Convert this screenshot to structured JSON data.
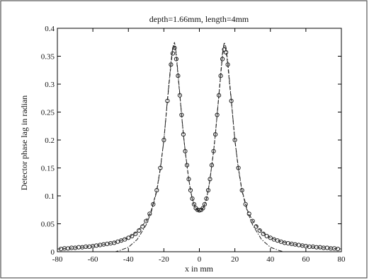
{
  "chart_data": {
    "type": "line",
    "title": "depth=1.66mm, length=4mm",
    "xlabel": "x in mm",
    "ylabel": "Detector phase lag in radian",
    "xlim": [
      -80,
      80
    ],
    "ylim": [
      0,
      0.4
    ],
    "xticks": [
      -80,
      -60,
      -40,
      -20,
      0,
      20,
      40,
      60,
      80
    ],
    "yticks": [
      0,
      0.05,
      0.1,
      0.15,
      0.2,
      0.25,
      0.3,
      0.35,
      0.4
    ],
    "xtick_labels": [
      "-80",
      "-60",
      "-40",
      "-20",
      "0",
      "20",
      "40",
      "60",
      "80"
    ],
    "ytick_labels": [
      "0",
      "0.05",
      "0.1",
      "0.15",
      "0.2",
      "0.25",
      "0.3",
      "0.35",
      "0.4"
    ],
    "grid": false,
    "legend": "none",
    "colors": {
      "series": "#222222",
      "axes": "#000000",
      "frame": "#555555"
    },
    "series": [
      {
        "style": "dashed",
        "x": [
          -80,
          -70,
          -60,
          -50,
          -45,
          -40,
          -35,
          -30,
          -27,
          -24,
          -22,
          -20,
          -18,
          -16,
          -15,
          -14,
          -13,
          -12,
          -11,
          -10,
          -9,
          -8,
          -7,
          -6,
          -5,
          -4,
          -3,
          -2,
          -1,
          0,
          1,
          2,
          3,
          4,
          5,
          6,
          7,
          8,
          9,
          10,
          11,
          12,
          13,
          14,
          15,
          16,
          17,
          18,
          20,
          22,
          24,
          27,
          30,
          35,
          40,
          45,
          50,
          60,
          70,
          80
        ],
        "y": [
          0.005,
          0.007,
          0.01,
          0.015,
          0.019,
          0.025,
          0.036,
          0.055,
          0.075,
          0.11,
          0.15,
          0.2,
          0.27,
          0.335,
          0.36,
          0.37,
          0.35,
          0.315,
          0.28,
          0.245,
          0.21,
          0.18,
          0.155,
          0.13,
          0.11,
          0.095,
          0.085,
          0.078,
          0.075,
          0.074,
          0.075,
          0.078,
          0.085,
          0.095,
          0.11,
          0.13,
          0.155,
          0.18,
          0.21,
          0.245,
          0.28,
          0.315,
          0.35,
          0.37,
          0.36,
          0.335,
          0.3,
          0.27,
          0.2,
          0.15,
          0.11,
          0.075,
          0.055,
          0.036,
          0.025,
          0.019,
          0.015,
          0.01,
          0.007,
          0.005
        ]
      },
      {
        "style": "dash-dot",
        "x": [
          -80,
          -70,
          -60,
          -50,
          -45,
          -40,
          -35,
          -30,
          -27,
          -24,
          -22,
          -20,
          -18,
          -16,
          -15,
          -14,
          -13,
          -12,
          -11,
          -10,
          -9,
          -8,
          -7,
          -6,
          -5,
          -4,
          -3,
          -2,
          -1,
          0,
          1,
          2,
          3,
          4,
          5,
          6,
          7,
          8,
          9,
          10,
          11,
          12,
          13,
          14,
          15,
          16,
          17,
          18,
          20,
          22,
          24,
          27,
          30,
          35,
          40,
          45,
          50,
          60,
          70,
          80
        ],
        "y": [
          -0.008,
          -0.006,
          -0.004,
          -0.002,
          0.002,
          0.008,
          0.022,
          0.048,
          0.072,
          0.108,
          0.148,
          0.2,
          0.272,
          0.34,
          0.366,
          0.375,
          0.355,
          0.318,
          0.282,
          0.246,
          0.211,
          0.18,
          0.154,
          0.13,
          0.11,
          0.094,
          0.084,
          0.077,
          0.074,
          0.073,
          0.074,
          0.077,
          0.084,
          0.094,
          0.11,
          0.13,
          0.154,
          0.18,
          0.211,
          0.246,
          0.282,
          0.318,
          0.355,
          0.375,
          0.366,
          0.34,
          0.305,
          0.272,
          0.2,
          0.148,
          0.108,
          0.072,
          0.048,
          0.022,
          0.008,
          0.002,
          -0.002,
          -0.004,
          -0.006,
          -0.008
        ]
      },
      {
        "style": "markers",
        "marker": "circle",
        "x": [
          -78,
          -76,
          -74,
          -72,
          -70,
          -68,
          -66,
          -64,
          -62,
          -60,
          -58,
          -56,
          -54,
          -52,
          -50,
          -48,
          -46,
          -44,
          -42,
          -40,
          -38,
          -36,
          -34,
          -32,
          -30,
          -28,
          -26,
          -24,
          -22,
          -20,
          -18,
          -16,
          -15,
          -14,
          -13,
          -12,
          -11,
          -10,
          -9,
          -8,
          -7,
          -6,
          -5,
          -4,
          -3,
          -2,
          -1,
          0,
          1,
          2,
          3,
          4,
          5,
          6,
          7,
          8,
          9,
          10,
          11,
          12,
          13,
          14,
          15,
          16,
          18,
          20,
          22,
          24,
          26,
          28,
          30,
          32,
          34,
          36,
          38,
          40,
          42,
          44,
          46,
          48,
          50,
          52,
          54,
          56,
          58,
          60,
          62,
          64,
          66,
          68,
          70,
          72,
          74,
          76,
          78
        ],
        "y": [
          0.005,
          0.006,
          0.006,
          0.007,
          0.007,
          0.008,
          0.008,
          0.009,
          0.009,
          0.01,
          0.011,
          0.012,
          0.013,
          0.014,
          0.015,
          0.016,
          0.018,
          0.02,
          0.022,
          0.025,
          0.028,
          0.032,
          0.038,
          0.045,
          0.055,
          0.068,
          0.085,
          0.11,
          0.15,
          0.2,
          0.27,
          0.335,
          0.355,
          0.365,
          0.345,
          0.315,
          0.28,
          0.245,
          0.21,
          0.18,
          0.155,
          0.13,
          0.11,
          0.095,
          0.085,
          0.078,
          0.075,
          0.074,
          0.075,
          0.078,
          0.085,
          0.095,
          0.11,
          0.13,
          0.155,
          0.18,
          0.21,
          0.245,
          0.28,
          0.315,
          0.345,
          0.362,
          0.357,
          0.335,
          0.27,
          0.2,
          0.15,
          0.11,
          0.085,
          0.068,
          0.055,
          0.045,
          0.038,
          0.032,
          0.028,
          0.025,
          0.022,
          0.02,
          0.018,
          0.016,
          0.015,
          0.014,
          0.013,
          0.012,
          0.011,
          0.01,
          0.009,
          0.009,
          0.008,
          0.008,
          0.007,
          0.007,
          0.006,
          0.006,
          0.005
        ]
      }
    ]
  }
}
